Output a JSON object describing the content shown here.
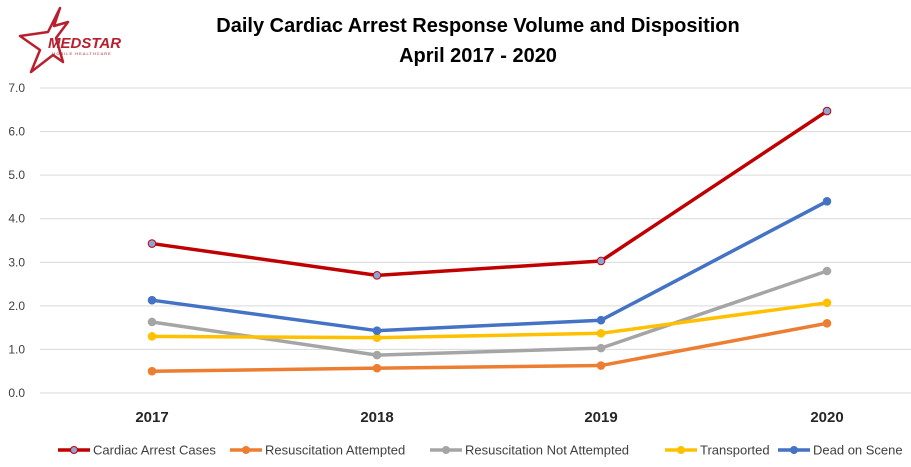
{
  "logo": {
    "name": "MedStar",
    "wordmark": "MEDSTAR",
    "tagline": "MOBILE HEALTHCARE",
    "color": "#b8202e"
  },
  "chart_data": {
    "type": "line",
    "title": "Daily Cardiac Arrest Response Volume and Disposition",
    "subtitle": "April 2017 - 2020",
    "categories": [
      "2017",
      "2018",
      "2019",
      "2020"
    ],
    "ylim": [
      0,
      7
    ],
    "yticks": [
      "0.0",
      "1.0",
      "2.0",
      "3.0",
      "4.0",
      "5.0",
      "6.0",
      "7.0"
    ],
    "grid": true,
    "legend_position": "bottom",
    "series": [
      {
        "name": "Cardiac Arrest Cases",
        "color": "#c00000",
        "marker": "#8ea3d6",
        "values": [
          3.43,
          2.7,
          3.03,
          6.47
        ]
      },
      {
        "name": "Resuscitation Attempted",
        "color": "#ed7d31",
        "marker": "#ed7d31",
        "values": [
          0.5,
          0.57,
          0.63,
          1.6
        ]
      },
      {
        "name": "Resuscitation Not Attempted",
        "color": "#a5a5a5",
        "marker": "#a5a5a5",
        "values": [
          1.63,
          0.87,
          1.03,
          2.8
        ]
      },
      {
        "name": "Transported",
        "color": "#ffc000",
        "marker": "#ffc000",
        "values": [
          1.3,
          1.27,
          1.37,
          2.07
        ]
      },
      {
        "name": "Dead on Scene",
        "color": "#4472c4",
        "marker": "#4472c4",
        "values": [
          2.13,
          1.43,
          1.67,
          4.4
        ]
      }
    ]
  }
}
